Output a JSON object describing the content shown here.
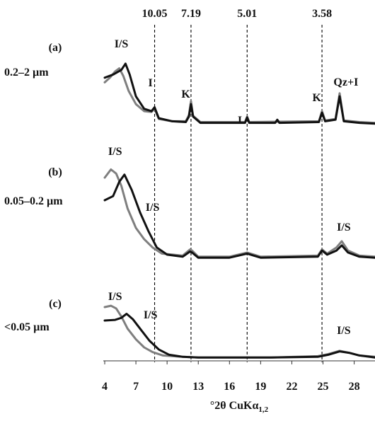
{
  "chart_data": {
    "type": "line",
    "xlabel_main": "°2θ CuKα",
    "xlabel_sub": "1,2",
    "xlim": [
      4,
      30
    ],
    "x_ticks": [
      4,
      7,
      10,
      13,
      16,
      19,
      22,
      25,
      28
    ],
    "peak_lines": [
      {
        "label": "10.05",
        "x": 8.8
      },
      {
        "label": "7.19",
        "x": 12.3
      },
      {
        "label": "5.01",
        "x": 17.7
      },
      {
        "label": "3.58",
        "x": 24.9
      }
    ],
    "colors": {
      "black_series": "#111111",
      "gray_series": "#7f7f7f"
    },
    "panels": [
      {
        "id": "(a)",
        "size": "0.2–2 µm",
        "annotations": [
          {
            "text": "I/S",
            "x": 5.6
          },
          {
            "text": "I",
            "x": 8.4
          },
          {
            "text": "K",
            "x": 11.8
          },
          {
            "text": "I",
            "x": 17.0
          },
          {
            "text": "K",
            "x": 24.4
          },
          {
            "text": "Qz+I",
            "x": 27.2
          }
        ],
        "series": [
          {
            "color": "black",
            "points": [
              [
                4,
                0.62
              ],
              [
                4.8,
                0.66
              ],
              [
                5.6,
                0.72
              ],
              [
                6.0,
                0.8
              ],
              [
                6.4,
                0.66
              ],
              [
                7.0,
                0.38
              ],
              [
                7.8,
                0.22
              ],
              [
                8.5,
                0.19
              ],
              [
                8.8,
                0.24
              ],
              [
                9.2,
                0.1
              ],
              [
                10.5,
                0.06
              ],
              [
                11.8,
                0.05
              ],
              [
                12.1,
                0.12
              ],
              [
                12.3,
                0.28
              ],
              [
                12.5,
                0.12
              ],
              [
                13.2,
                0.04
              ],
              [
                16,
                0.04
              ],
              [
                17.5,
                0.04
              ],
              [
                17.7,
                0.11
              ],
              [
                17.9,
                0.04
              ],
              [
                20.4,
                0.04
              ],
              [
                20.6,
                0.08
              ],
              [
                20.8,
                0.04
              ],
              [
                24.6,
                0.05
              ],
              [
                24.9,
                0.17
              ],
              [
                25.2,
                0.06
              ],
              [
                26.2,
                0.08
              ],
              [
                26.6,
                0.38
              ],
              [
                27.0,
                0.06
              ],
              [
                28.5,
                0.04
              ],
              [
                30,
                0.03
              ]
            ]
          },
          {
            "color": "gray",
            "points": [
              [
                4,
                0.56
              ],
              [
                4.5,
                0.62
              ],
              [
                5.0,
                0.7
              ],
              [
                5.4,
                0.74
              ],
              [
                5.8,
                0.64
              ],
              [
                6.3,
                0.45
              ],
              [
                7.0,
                0.28
              ],
              [
                7.8,
                0.19
              ],
              [
                8.5,
                0.18
              ],
              [
                8.8,
                0.22
              ],
              [
                9.2,
                0.09
              ],
              [
                10.5,
                0.06
              ],
              [
                11.8,
                0.06
              ],
              [
                12.1,
                0.14
              ],
              [
                12.3,
                0.32
              ],
              [
                12.5,
                0.13
              ],
              [
                13.2,
                0.05
              ],
              [
                16,
                0.05
              ],
              [
                17.5,
                0.05
              ],
              [
                17.7,
                0.12
              ],
              [
                17.9,
                0.05
              ],
              [
                24.6,
                0.06
              ],
              [
                24.9,
                0.19
              ],
              [
                25.2,
                0.07
              ],
              [
                26.2,
                0.09
              ],
              [
                26.6,
                0.42
              ],
              [
                27.0,
                0.07
              ],
              [
                28.5,
                0.05
              ],
              [
                30,
                0.04
              ]
            ]
          }
        ]
      },
      {
        "id": "(b)",
        "size": "0.05–0.2 µm",
        "annotations": [
          {
            "text": "I/S",
            "x": 5.0
          },
          {
            "text": "I/S",
            "x": 8.6
          },
          {
            "text": "I/S",
            "x": 27.0
          }
        ],
        "series": [
          {
            "color": "black",
            "points": [
              [
                4,
                0.6
              ],
              [
                4.8,
                0.64
              ],
              [
                5.4,
                0.78
              ],
              [
                5.9,
                0.85
              ],
              [
                6.6,
                0.7
              ],
              [
                7.4,
                0.48
              ],
              [
                8.2,
                0.3
              ],
              [
                9.0,
                0.14
              ],
              [
                10,
                0.07
              ],
              [
                11.5,
                0.05
              ],
              [
                12.2,
                0.1
              ],
              [
                12.4,
                0.09
              ],
              [
                13.0,
                0.04
              ],
              [
                16,
                0.04
              ],
              [
                17.7,
                0.08
              ],
              [
                19,
                0.04
              ],
              [
                24.5,
                0.05
              ],
              [
                24.9,
                0.11
              ],
              [
                25.4,
                0.07
              ],
              [
                26.3,
                0.11
              ],
              [
                26.8,
                0.16
              ],
              [
                27.4,
                0.09
              ],
              [
                28.5,
                0.05
              ],
              [
                30,
                0.04
              ]
            ]
          },
          {
            "color": "gray",
            "points": [
              [
                4,
                0.82
              ],
              [
                4.6,
                0.9
              ],
              [
                5.1,
                0.86
              ],
              [
                5.6,
                0.74
              ],
              [
                6.2,
                0.52
              ],
              [
                7.0,
                0.33
              ],
              [
                7.8,
                0.22
              ],
              [
                8.6,
                0.14
              ],
              [
                9.5,
                0.08
              ],
              [
                11.5,
                0.06
              ],
              [
                12.2,
                0.12
              ],
              [
                12.4,
                0.11
              ],
              [
                13.0,
                0.05
              ],
              [
                16,
                0.05
              ],
              [
                17.7,
                0.09
              ],
              [
                19,
                0.05
              ],
              [
                24.5,
                0.06
              ],
              [
                24.9,
                0.12
              ],
              [
                25.4,
                0.08
              ],
              [
                26.3,
                0.14
              ],
              [
                26.8,
                0.2
              ],
              [
                27.4,
                0.11
              ],
              [
                28.5,
                0.06
              ],
              [
                30,
                0.05
              ]
            ]
          }
        ]
      },
      {
        "id": "(c)",
        "size": "<0.05 µm",
        "annotations": [
          {
            "text": "I/S",
            "x": 5.0
          },
          {
            "text": "I/S",
            "x": 8.4
          },
          {
            "text": "I/S",
            "x": 27.0
          }
        ],
        "series": [
          {
            "color": "black",
            "points": [
              [
                4,
                0.6
              ],
              [
                5.0,
                0.61
              ],
              [
                5.6,
                0.64
              ],
              [
                6.1,
                0.7
              ],
              [
                6.7,
                0.62
              ],
              [
                7.5,
                0.46
              ],
              [
                8.3,
                0.3
              ],
              [
                9.2,
                0.17
              ],
              [
                10.2,
                0.09
              ],
              [
                11.5,
                0.06
              ],
              [
                13,
                0.05
              ],
              [
                20,
                0.05
              ],
              [
                24.5,
                0.06
              ],
              [
                25.5,
                0.09
              ],
              [
                26.6,
                0.14
              ],
              [
                27.5,
                0.12
              ],
              [
                28.5,
                0.08
              ],
              [
                30,
                0.05
              ]
            ]
          },
          {
            "color": "gray",
            "points": [
              [
                4,
                0.8
              ],
              [
                4.6,
                0.82
              ],
              [
                5.1,
                0.78
              ],
              [
                5.6,
                0.66
              ],
              [
                6.2,
                0.48
              ],
              [
                7.0,
                0.32
              ],
              [
                7.8,
                0.2
              ],
              [
                8.6,
                0.13
              ],
              [
                9.6,
                0.08
              ],
              [
                11.5,
                0.06
              ],
              [
                13,
                0.05
              ],
              [
                20,
                0.05
              ],
              [
                24.5,
                0.07
              ],
              [
                25.5,
                0.1
              ],
              [
                26.6,
                0.15
              ],
              [
                27.5,
                0.12
              ],
              [
                28.5,
                0.08
              ],
              [
                30,
                0.06
              ]
            ]
          }
        ]
      }
    ]
  }
}
